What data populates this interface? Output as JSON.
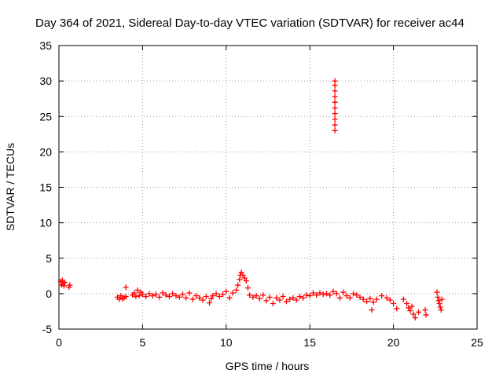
{
  "chart_data": {
    "type": "scatter",
    "title": "Day 364 of 2021, Sidereal Day-to-day VTEC variation (SDTVAR) for receiver ac44",
    "xlabel": "GPS time / hours",
    "ylabel": "SDTVAR / TECUs",
    "xlim": [
      0,
      25
    ],
    "ylim": [
      -5,
      35
    ],
    "xticks": [
      0,
      5,
      10,
      15,
      20,
      25
    ],
    "yticks": [
      -5,
      0,
      5,
      10,
      15,
      20,
      25,
      30,
      35
    ],
    "grid": true,
    "marker": "+",
    "series": [
      {
        "name": "SDTVAR",
        "color": "#ff0000",
        "points": [
          [
            0.1,
            1.7
          ],
          [
            0.15,
            1.2
          ],
          [
            0.2,
            1.9
          ],
          [
            0.25,
            1.4
          ],
          [
            0.3,
            1.1
          ],
          [
            0.35,
            1.6
          ],
          [
            0.6,
            0.9
          ],
          [
            0.65,
            1.2
          ],
          [
            3.5,
            -0.5
          ],
          [
            3.6,
            -0.8
          ],
          [
            3.7,
            -0.3
          ],
          [
            3.8,
            -0.7
          ],
          [
            3.9,
            -0.6
          ],
          [
            4.0,
            0.9
          ],
          [
            4.0,
            -0.4
          ],
          [
            4.4,
            -0.2
          ],
          [
            4.5,
            0.1
          ],
          [
            4.6,
            -0.4
          ],
          [
            4.7,
            0.5
          ],
          [
            4.8,
            -0.3
          ],
          [
            4.9,
            0.2
          ],
          [
            5.0,
            -0.1
          ],
          [
            5.2,
            -0.4
          ],
          [
            5.4,
            0.0
          ],
          [
            5.6,
            -0.3
          ],
          [
            5.8,
            -0.1
          ],
          [
            6.0,
            -0.5
          ],
          [
            6.2,
            0.1
          ],
          [
            6.4,
            -0.2
          ],
          [
            6.6,
            -0.4
          ],
          [
            6.8,
            0.0
          ],
          [
            7.0,
            -0.3
          ],
          [
            7.2,
            -0.5
          ],
          [
            7.4,
            -0.1
          ],
          [
            7.6,
            -0.6
          ],
          [
            7.8,
            0.1
          ],
          [
            8.0,
            -0.8
          ],
          [
            8.2,
            -0.3
          ],
          [
            8.4,
            -0.6
          ],
          [
            8.6,
            -0.9
          ],
          [
            8.8,
            -0.4
          ],
          [
            9.0,
            -1.3
          ],
          [
            9.1,
            -0.7
          ],
          [
            9.2,
            -0.3
          ],
          [
            9.4,
            0.0
          ],
          [
            9.6,
            -0.4
          ],
          [
            9.8,
            -0.1
          ],
          [
            10.0,
            0.3
          ],
          [
            10.2,
            -0.6
          ],
          [
            10.4,
            0.1
          ],
          [
            10.6,
            0.5
          ],
          [
            10.7,
            1.2
          ],
          [
            10.8,
            2.0
          ],
          [
            10.85,
            2.6
          ],
          [
            10.9,
            3.0
          ],
          [
            11.0,
            2.6
          ],
          [
            11.1,
            2.2
          ],
          [
            11.2,
            1.8
          ],
          [
            11.3,
            0.8
          ],
          [
            11.4,
            -0.2
          ],
          [
            11.6,
            -0.5
          ],
          [
            11.8,
            -0.3
          ],
          [
            12.0,
            -0.7
          ],
          [
            12.2,
            -0.2
          ],
          [
            12.4,
            -1.0
          ],
          [
            12.6,
            -0.5
          ],
          [
            12.8,
            -1.4
          ],
          [
            13.0,
            -0.6
          ],
          [
            13.2,
            -0.9
          ],
          [
            13.4,
            -0.4
          ],
          [
            13.6,
            -1.1
          ],
          [
            13.8,
            -0.8
          ],
          [
            14.0,
            -0.6
          ],
          [
            14.2,
            -0.9
          ],
          [
            14.4,
            -0.4
          ],
          [
            14.6,
            -0.6
          ],
          [
            14.8,
            -0.2
          ],
          [
            15.0,
            -0.3
          ],
          [
            15.2,
            0.1
          ],
          [
            15.4,
            -0.2
          ],
          [
            15.6,
            0.1
          ],
          [
            15.8,
            -0.1
          ],
          [
            16.0,
            0.0
          ],
          [
            16.2,
            -0.2
          ],
          [
            16.4,
            0.3
          ],
          [
            16.6,
            0.0
          ],
          [
            16.8,
            -0.6
          ],
          [
            16.5,
            23.0
          ],
          [
            16.5,
            23.8
          ],
          [
            16.5,
            24.6
          ],
          [
            16.5,
            25.4
          ],
          [
            16.5,
            26.2
          ],
          [
            16.5,
            27.0
          ],
          [
            16.5,
            27.8
          ],
          [
            16.5,
            28.6
          ],
          [
            16.5,
            29.4
          ],
          [
            16.5,
            30.0
          ],
          [
            17.0,
            0.2
          ],
          [
            17.2,
            -0.3
          ],
          [
            17.4,
            -0.6
          ],
          [
            17.6,
            0.0
          ],
          [
            17.8,
            -0.2
          ],
          [
            18.0,
            -0.5
          ],
          [
            18.2,
            -0.8
          ],
          [
            18.4,
            -1.1
          ],
          [
            18.6,
            -0.7
          ],
          [
            18.7,
            -2.3
          ],
          [
            18.8,
            -1.2
          ],
          [
            19.0,
            -0.8
          ],
          [
            19.3,
            -0.3
          ],
          [
            19.6,
            -0.6
          ],
          [
            19.8,
            -0.9
          ],
          [
            20.0,
            -1.4
          ],
          [
            20.2,
            -2.1
          ],
          [
            20.6,
            -0.8
          ],
          [
            20.8,
            -1.4
          ],
          [
            20.9,
            -2.0
          ],
          [
            21.0,
            -2.4
          ],
          [
            21.1,
            -1.8
          ],
          [
            21.2,
            -2.9
          ],
          [
            21.3,
            -3.4
          ],
          [
            21.5,
            -2.6
          ],
          [
            21.9,
            -2.3
          ],
          [
            21.95,
            -3.0
          ],
          [
            22.6,
            0.2
          ],
          [
            22.65,
            -0.5
          ],
          [
            22.7,
            -1.0
          ],
          [
            22.75,
            -1.4
          ],
          [
            22.8,
            -1.9
          ],
          [
            22.85,
            -2.3
          ],
          [
            22.9,
            -0.8
          ]
        ]
      }
    ]
  }
}
